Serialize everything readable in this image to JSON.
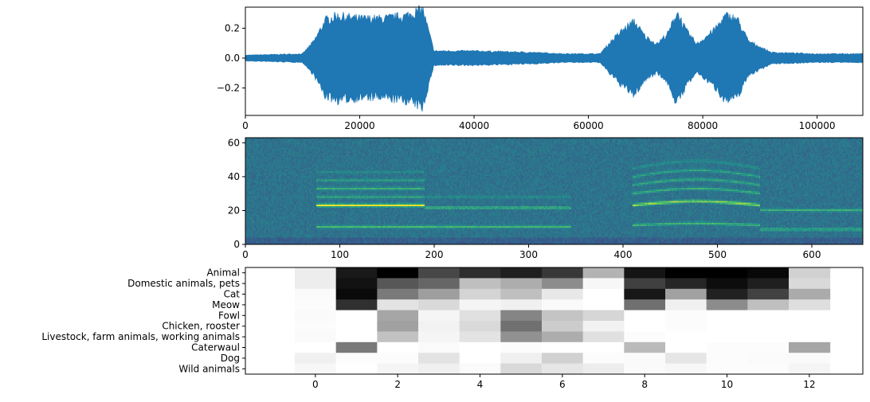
{
  "chart_data": [
    {
      "type": "line",
      "description_kind": "waveform",
      "xlim": [
        0,
        108000
      ],
      "ylim": [
        -0.384,
        0.341
      ],
      "xticks": [
        "0",
        "20000",
        "40000",
        "60000",
        "80000",
        "100000"
      ],
      "yticks": [
        "−0.2",
        "0.0",
        "0.2"
      ],
      "color": "#1f77b4",
      "envelope": {
        "x": [
          0,
          10000,
          12000,
          14000,
          16000,
          20000,
          24000,
          28000,
          30000,
          31000,
          33000,
          40000,
          50000,
          56000,
          62000,
          64000,
          66000,
          68000,
          70000,
          72000,
          74000,
          75500,
          77000,
          79000,
          82000,
          84000,
          86000,
          88000,
          92000,
          100000,
          108000
        ],
        "amplitude": [
          0.02,
          0.03,
          0.12,
          0.27,
          0.3,
          0.28,
          0.28,
          0.3,
          0.33,
          0.35,
          0.05,
          0.05,
          0.04,
          0.03,
          0.03,
          0.12,
          0.2,
          0.26,
          0.15,
          0.1,
          0.18,
          0.33,
          0.2,
          0.1,
          0.2,
          0.3,
          0.28,
          0.12,
          0.04,
          0.03,
          0.03
        ]
      }
    },
    {
      "type": "heatmap",
      "description_kind": "spectrogram",
      "xlim": [
        0,
        654
      ],
      "ylim": [
        0,
        63
      ],
      "xticks": [
        "0",
        "100",
        "200",
        "300",
        "400",
        "500",
        "600"
      ],
      "yticks": [
        "0",
        "20",
        "40",
        "60"
      ],
      "colormap": "viridis"
    },
    {
      "type": "heatmap",
      "colormap": "gray_r",
      "xlim": [
        -1.7,
        13.3
      ],
      "xticks": [
        "0",
        "2",
        "4",
        "6",
        "8",
        "10",
        "12"
      ],
      "rows": [
        "Animal",
        "Domestic animals, pets",
        "Cat",
        "Meow",
        "Fowl",
        "Chicken, rooster",
        "Livestock, farm animals, working animals",
        "Caterwaul",
        "Dog",
        "Wild animals"
      ],
      "columns": [
        0,
        1,
        2,
        3,
        4,
        5,
        6,
        7,
        8,
        9,
        10,
        11,
        12
      ],
      "values": [
        [
          0.07,
          0.9,
          1.0,
          0.72,
          0.82,
          0.88,
          0.78,
          0.3,
          0.92,
          1.0,
          1.0,
          0.97,
          0.18
        ],
        [
          0.07,
          0.93,
          0.66,
          0.6,
          0.25,
          0.32,
          0.45,
          0.03,
          0.75,
          0.85,
          0.95,
          0.88,
          0.15
        ],
        [
          0.02,
          0.96,
          0.52,
          0.38,
          0.17,
          0.25,
          0.09,
          0.0,
          0.91,
          0.37,
          0.87,
          0.74,
          0.33
        ],
        [
          0.01,
          0.81,
          0.11,
          0.15,
          0.04,
          0.06,
          0.02,
          0.0,
          0.56,
          0.06,
          0.45,
          0.25,
          0.13
        ],
        [
          0.02,
          0.0,
          0.35,
          0.04,
          0.12,
          0.48,
          0.23,
          0.16,
          0.0,
          0.01,
          0.0,
          0.0,
          0.0
        ],
        [
          0.01,
          0.0,
          0.37,
          0.05,
          0.15,
          0.56,
          0.2,
          0.05,
          0.0,
          0.01,
          0.0,
          0.0,
          0.0
        ],
        [
          0.02,
          0.0,
          0.24,
          0.04,
          0.11,
          0.43,
          0.32,
          0.12,
          0.01,
          0.0,
          0.0,
          0.0,
          0.0
        ],
        [
          0.0,
          0.52,
          0.0,
          0.02,
          0.0,
          0.01,
          0.0,
          0.0,
          0.27,
          0.0,
          0.01,
          0.01,
          0.35
        ],
        [
          0.06,
          0.01,
          0.01,
          0.11,
          0.0,
          0.06,
          0.18,
          0.01,
          0.02,
          0.1,
          0.01,
          0.02,
          0.02
        ],
        [
          0.03,
          0.0,
          0.04,
          0.06,
          0.02,
          0.15,
          0.1,
          0.07,
          0.02,
          0.03,
          0.01,
          0.01,
          0.04
        ]
      ]
    }
  ]
}
